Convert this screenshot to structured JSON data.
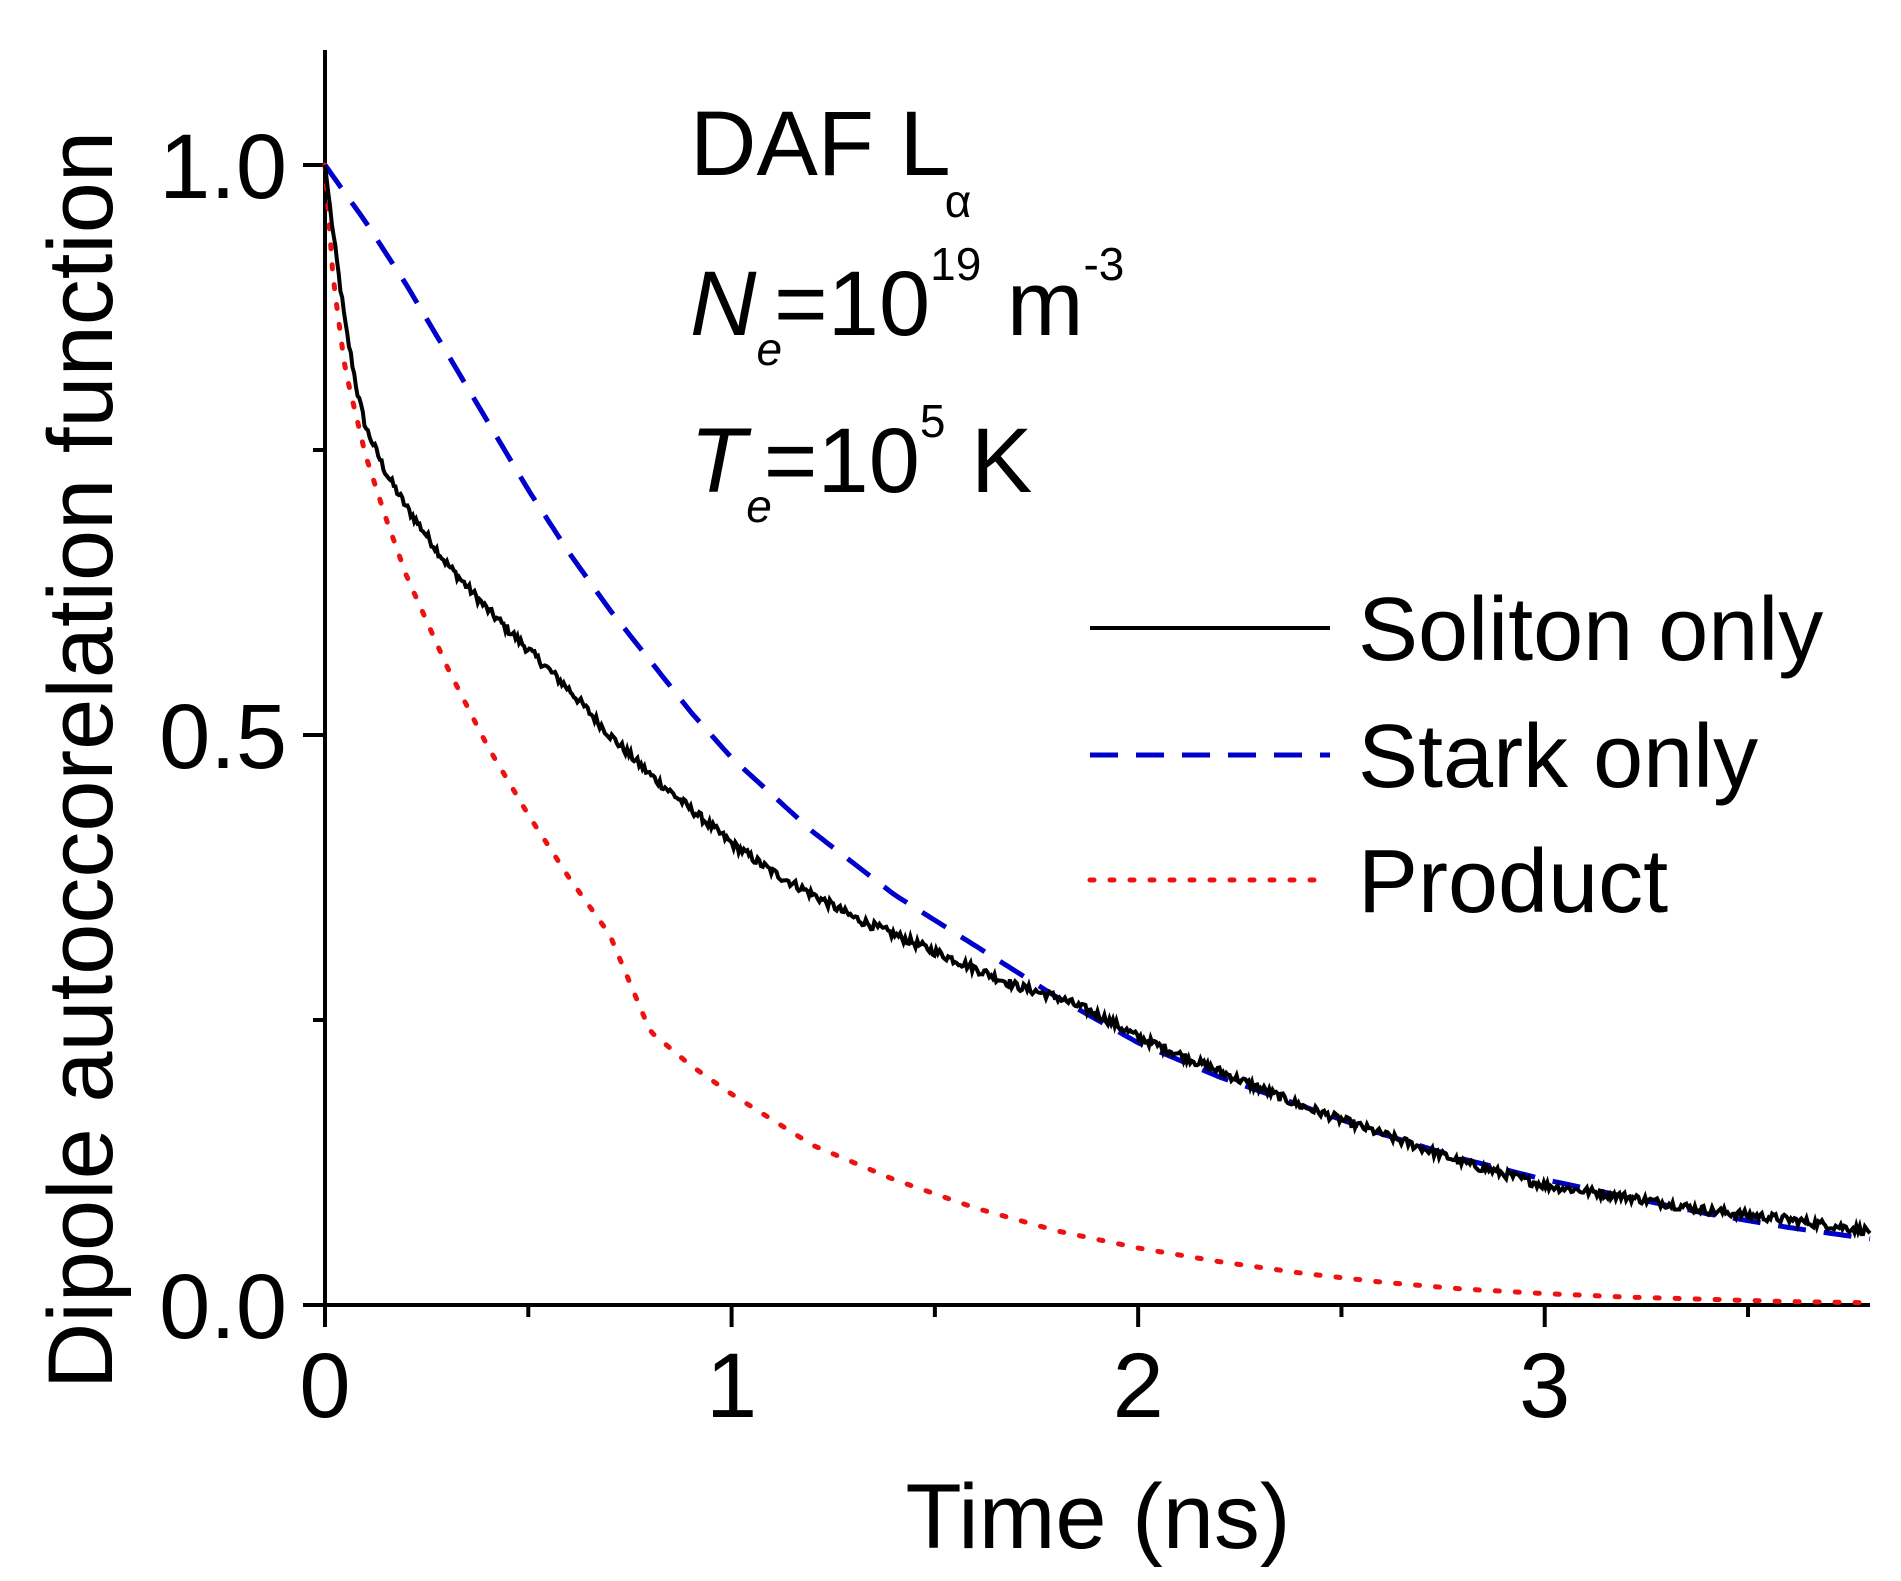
{
  "chart_data": {
    "type": "line",
    "title": "",
    "xlabel": "Time (ns)",
    "ylabel": "Dipole autoccorelation function",
    "xlim": [
      0,
      3.8
    ],
    "ylim": [
      0,
      1.1
    ],
    "x_ticks": [
      0,
      1,
      2,
      3
    ],
    "x_tick_labels": [
      "0",
      "1",
      "2",
      "3"
    ],
    "x_minor_ticks": [
      0.5,
      1.5,
      2.5,
      3.5
    ],
    "y_ticks": [
      0.0,
      0.5,
      1.0
    ],
    "y_tick_labels": [
      "0.0",
      "0.5",
      "1.0"
    ],
    "y_minor_ticks": [
      0.25,
      0.75
    ],
    "grid": false,
    "legend_position": "right",
    "annotations": {
      "line1_main": "DAF L",
      "line1_sub": "α",
      "line2_var": "N",
      "line2_sub": "e",
      "line2_eq": "=10",
      "line2_sup": "19",
      "line2_unit": " m",
      "line2_unit_sup": "-3",
      "line3_var": "T",
      "line3_sub": "e",
      "line3_eq": "=10",
      "line3_sup": "5",
      "line3_unit": " K"
    },
    "series": [
      {
        "name": "Soliton only",
        "color": "#000000",
        "style": "solid",
        "noisy": true,
        "x": [
          0,
          0.02,
          0.05,
          0.08,
          0.1,
          0.15,
          0.2,
          0.3,
          0.4,
          0.5,
          0.6,
          0.7,
          0.8,
          0.9,
          1.0,
          1.1,
          1.2,
          1.3,
          1.4,
          1.5,
          1.6,
          1.7,
          1.8,
          1.9,
          2.0,
          2.2,
          2.4,
          2.6,
          2.8,
          3.0,
          3.2,
          3.4,
          3.6,
          3.8
        ],
        "y": [
          1.0,
          0.94,
          0.86,
          0.8,
          0.77,
          0.73,
          0.7,
          0.65,
          0.61,
          0.575,
          0.54,
          0.5,
          0.465,
          0.435,
          0.405,
          0.38,
          0.36,
          0.34,
          0.325,
          0.31,
          0.295,
          0.28,
          0.27,
          0.255,
          0.235,
          0.205,
          0.175,
          0.15,
          0.125,
          0.105,
          0.095,
          0.083,
          0.075,
          0.065
        ]
      },
      {
        "name": "Stark only",
        "color": "#0000cc",
        "style": "dashed",
        "noisy": false,
        "x": [
          0,
          0.1,
          0.2,
          0.3,
          0.4,
          0.5,
          0.6,
          0.7,
          0.8,
          0.9,
          1.0,
          1.2,
          1.4,
          1.6,
          1.8,
          2.0,
          2.2,
          2.4,
          2.6,
          2.8,
          3.0,
          3.2,
          3.4,
          3.6,
          3.8
        ],
        "y": [
          1.0,
          0.95,
          0.895,
          0.835,
          0.775,
          0.715,
          0.66,
          0.61,
          0.565,
          0.52,
          0.48,
          0.415,
          0.36,
          0.315,
          0.27,
          0.23,
          0.2,
          0.175,
          0.15,
          0.128,
          0.11,
          0.095,
          0.08,
          0.068,
          0.058
        ]
      },
      {
        "name": "Product",
        "color": "#ee1111",
        "style": "dotted",
        "noisy": false,
        "x": [
          0,
          0.02,
          0.05,
          0.1,
          0.15,
          0.2,
          0.3,
          0.4,
          0.5,
          0.6,
          0.7,
          0.8,
          0.9,
          1.0,
          1.2,
          1.4,
          1.6,
          1.8,
          2.0,
          2.2,
          2.4,
          2.6,
          2.8,
          3.0,
          3.2,
          3.4,
          3.6,
          3.8
        ],
        "y": [
          1.0,
          0.9,
          0.82,
          0.745,
          0.69,
          0.64,
          0.56,
          0.49,
          0.43,
          0.375,
          0.325,
          0.24,
          0.21,
          0.185,
          0.14,
          0.11,
          0.085,
          0.065,
          0.05,
          0.038,
          0.028,
          0.02,
          0.014,
          0.01,
          0.007,
          0.005,
          0.003,
          0.002
        ]
      }
    ]
  }
}
